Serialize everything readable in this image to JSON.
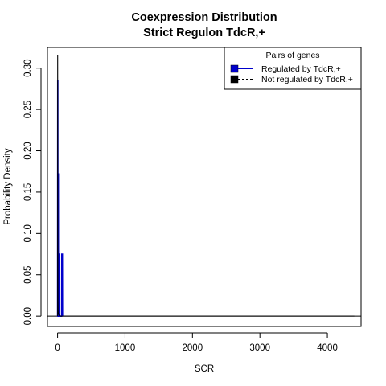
{
  "chart_data": {
    "type": "line",
    "title": "Coexpression Distribution",
    "subtitle": "Strict Regulon TdcR,+",
    "xlabel": "SCR",
    "ylabel": "Probability Density",
    "xlim": [
      -150,
      4500
    ],
    "ylim": [
      -0.0125,
      0.325
    ],
    "x_ticks": [
      0,
      1000,
      2000,
      3000,
      4000
    ],
    "x_tick_labels": [
      "0",
      "1000",
      "2000",
      "3000",
      "4000"
    ],
    "y_ticks": [
      0.0,
      0.05,
      0.1,
      0.15,
      0.2,
      0.25,
      0.3
    ],
    "y_tick_labels": [
      "0.00",
      "0.05",
      "0.10",
      "0.15",
      "0.20",
      "0.25",
      "0.30"
    ],
    "legend": {
      "title": "Pairs of genes",
      "position": "top-right",
      "entries": [
        {
          "label": "Regulated by  TdcR,+",
          "color": "#0000CC",
          "line": "solid"
        },
        {
          "label": "Not regulated by  TdcR,+",
          "color": "#000000",
          "line": "dashed"
        }
      ]
    },
    "series": [
      {
        "name": "Regulated by  TdcR,+",
        "color": "#0000CC",
        "x": [
          0,
          2,
          4,
          6,
          8,
          10,
          12,
          14,
          16,
          18,
          20,
          22,
          24,
          60,
          62,
          64,
          66,
          68,
          70,
          72,
          74
        ],
        "y": [
          0,
          0.285,
          0.285,
          0,
          0,
          0.172,
          0.172,
          0,
          0,
          0.075,
          0.075,
          0,
          0,
          0,
          0.075,
          0.075,
          0.075,
          0.075,
          0.075,
          0.075,
          0
        ]
      },
      {
        "name": "Not regulated by  TdcR,+",
        "color": "#000000",
        "x": [
          0,
          1,
          2,
          3,
          4,
          5,
          6,
          8,
          10,
          20,
          50,
          100,
          4400
        ],
        "y": [
          0,
          0.315,
          0.315,
          0.2,
          0.1,
          0.05,
          0.02,
          0.008,
          0.004,
          0.001,
          0,
          0,
          0
        ]
      }
    ]
  }
}
